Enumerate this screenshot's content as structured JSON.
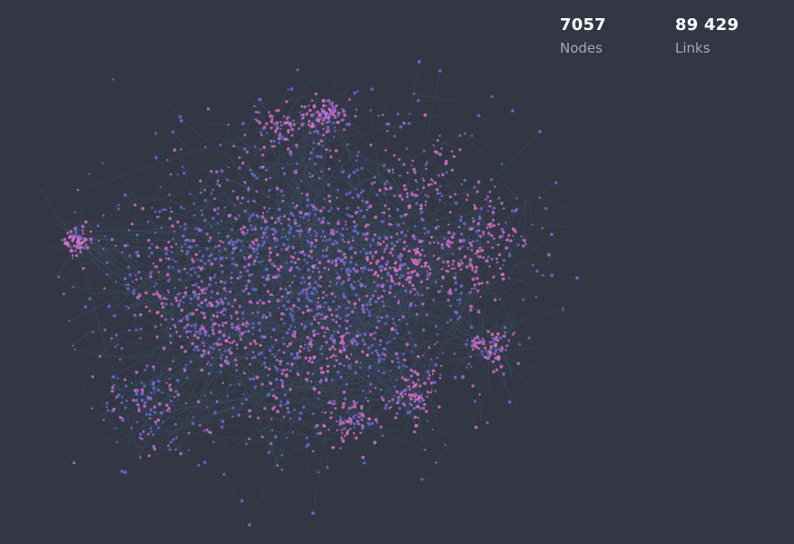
{
  "stats": {
    "nodes": {
      "value": "7057",
      "label": "Nodes"
    },
    "links": {
      "value": "89 429",
      "label": "Links"
    }
  },
  "colors": {
    "background": "#323743",
    "link": "#4a6a8a",
    "node_primary": "#6a6ad8",
    "node_accent": "#e070c8",
    "stat_value": "#ffffff",
    "stat_label": "#a3a9b6"
  },
  "graph": {
    "type": "force-directed network",
    "nodes": 7057,
    "links": 89429
  }
}
